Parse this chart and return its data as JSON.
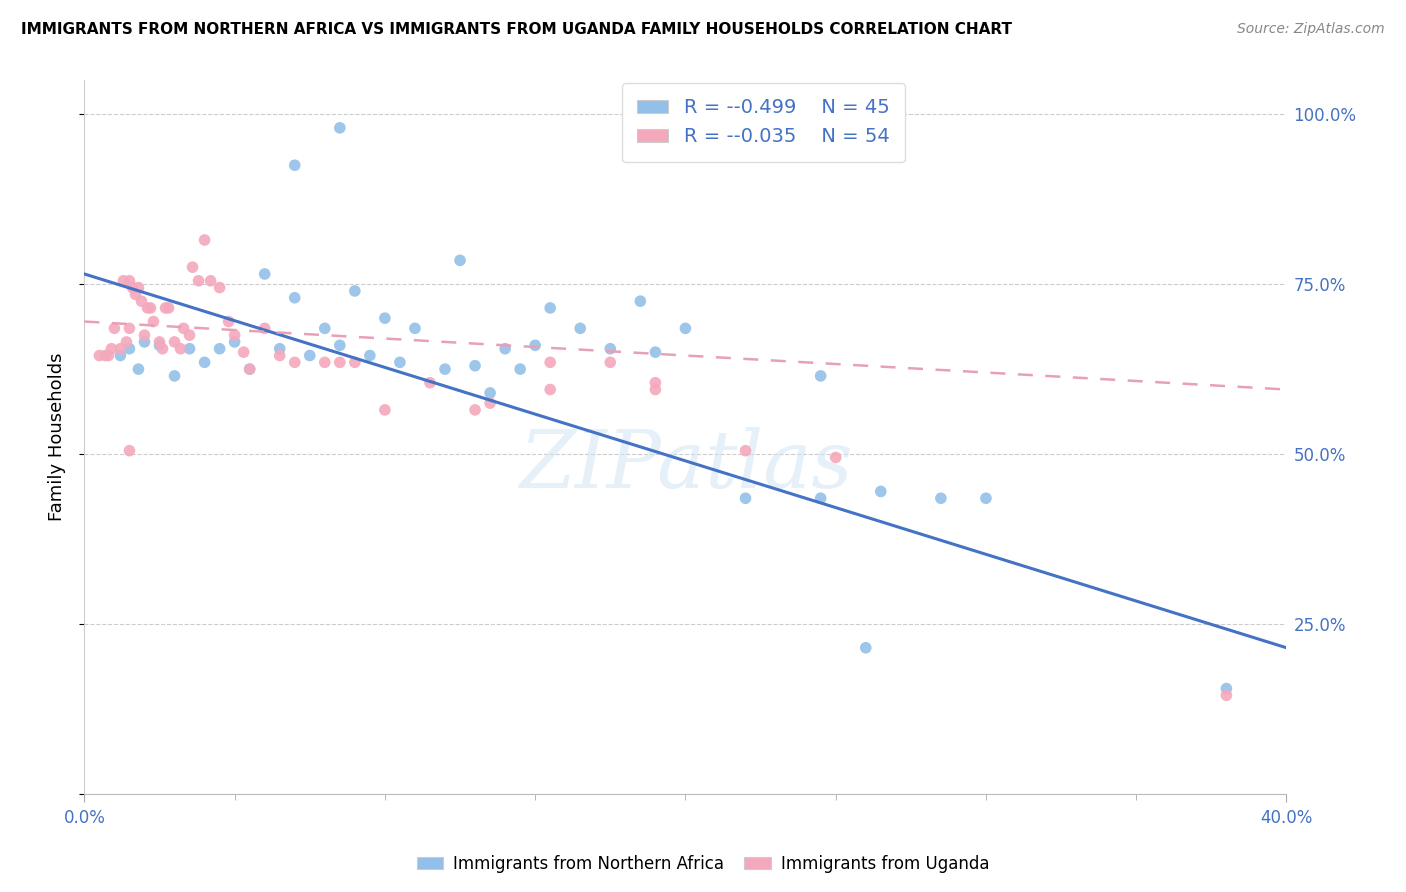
{
  "title": "IMMIGRANTS FROM NORTHERN AFRICA VS IMMIGRANTS FROM UGANDA FAMILY HOUSEHOLDS CORRELATION CHART",
  "source": "Source: ZipAtlas.com",
  "ylabel": "Family Households",
  "xlim": [
    0.0,
    0.4
  ],
  "ylim": [
    0.0,
    1.05
  ],
  "ytick_labels": [
    "",
    "25.0%",
    "50.0%",
    "75.0%",
    "100.0%"
  ],
  "ytick_vals": [
    0.0,
    0.25,
    0.5,
    0.75,
    1.0
  ],
  "blue_color": "#92C0E8",
  "pink_color": "#F4A8BC",
  "blue_line_color": "#4472C4",
  "pink_line_color": "#E8A0B4",
  "legend_R1": "-0.499",
  "legend_N1": "45",
  "legend_R2": "-0.035",
  "legend_N2": "54",
  "watermark": "ZIPatlas",
  "blue_scatter_x": [
    0.085,
    0.07,
    0.02,
    0.015,
    0.012,
    0.018,
    0.025,
    0.03,
    0.035,
    0.04,
    0.045,
    0.05,
    0.055,
    0.06,
    0.065,
    0.07,
    0.075,
    0.08,
    0.085,
    0.09,
    0.095,
    0.1,
    0.105,
    0.11,
    0.12,
    0.125,
    0.13,
    0.135,
    0.14,
    0.145,
    0.15,
    0.155,
    0.165,
    0.175,
    0.185,
    0.19,
    0.2,
    0.22,
    0.245,
    0.265,
    0.285,
    0.3,
    0.38,
    0.245,
    0.26
  ],
  "blue_scatter_y": [
    0.98,
    0.925,
    0.665,
    0.655,
    0.645,
    0.625,
    0.66,
    0.615,
    0.655,
    0.635,
    0.655,
    0.665,
    0.625,
    0.765,
    0.655,
    0.73,
    0.645,
    0.685,
    0.66,
    0.74,
    0.645,
    0.7,
    0.635,
    0.685,
    0.625,
    0.785,
    0.63,
    0.59,
    0.655,
    0.625,
    0.66,
    0.715,
    0.685,
    0.655,
    0.725,
    0.65,
    0.685,
    0.435,
    0.435,
    0.445,
    0.435,
    0.435,
    0.155,
    0.615,
    0.215
  ],
  "pink_scatter_x": [
    0.005,
    0.007,
    0.008,
    0.009,
    0.01,
    0.012,
    0.013,
    0.014,
    0.015,
    0.015,
    0.016,
    0.017,
    0.018,
    0.019,
    0.02,
    0.021,
    0.022,
    0.023,
    0.025,
    0.026,
    0.027,
    0.028,
    0.03,
    0.032,
    0.033,
    0.035,
    0.036,
    0.038,
    0.04,
    0.042,
    0.045,
    0.048,
    0.05,
    0.053,
    0.055,
    0.06,
    0.065,
    0.07,
    0.08,
    0.085,
    0.09,
    0.1,
    0.115,
    0.13,
    0.155,
    0.175,
    0.19,
    0.22,
    0.25,
    0.015,
    0.135,
    0.155,
    0.19,
    0.38
  ],
  "pink_scatter_y": [
    0.645,
    0.645,
    0.645,
    0.655,
    0.685,
    0.655,
    0.755,
    0.665,
    0.685,
    0.755,
    0.745,
    0.735,
    0.745,
    0.725,
    0.675,
    0.715,
    0.715,
    0.695,
    0.665,
    0.655,
    0.715,
    0.715,
    0.665,
    0.655,
    0.685,
    0.675,
    0.775,
    0.755,
    0.815,
    0.755,
    0.745,
    0.695,
    0.675,
    0.65,
    0.625,
    0.685,
    0.645,
    0.635,
    0.635,
    0.635,
    0.635,
    0.565,
    0.605,
    0.565,
    0.595,
    0.635,
    0.595,
    0.505,
    0.495,
    0.505,
    0.575,
    0.635,
    0.605,
    0.145
  ],
  "blue_trend_x": [
    0.0,
    0.4
  ],
  "blue_trend_y": [
    0.765,
    0.215
  ],
  "pink_trend_x": [
    0.0,
    0.4
  ],
  "pink_trend_y": [
    0.695,
    0.595
  ]
}
